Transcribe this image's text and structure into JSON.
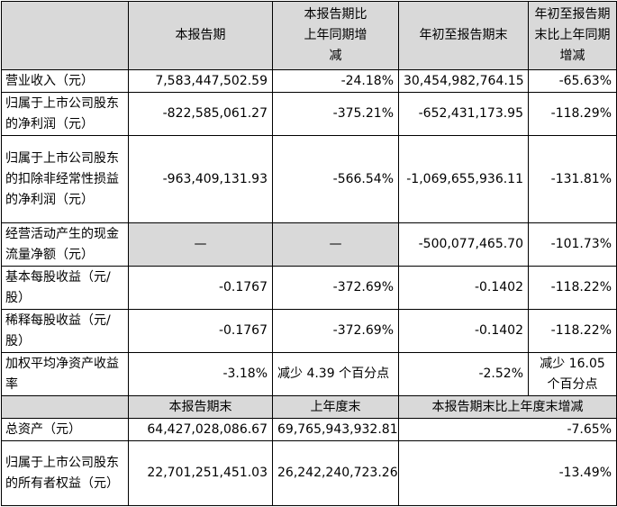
{
  "header": {
    "col1": "本报告期",
    "col2": "本报告期比上年同期增减",
    "col3": "年初至报告期末",
    "col4": "年初至报告期末比上年同期增减"
  },
  "rows": [
    {
      "label": "营业收入（元）",
      "v1": "7,583,447,502.59",
      "v2": "-24.18%",
      "v3": "30,454,982,764.15",
      "v4": "-65.63%"
    },
    {
      "label": "归属于上市公司股东的净利润（元）",
      "v1": "-822,585,061.27",
      "v2": "-375.21%",
      "v3": "-652,431,173.95",
      "v4": "-118.29%"
    },
    {
      "label": "归属于上市公司股东的扣除非经常性损益的净利润（元）",
      "v1": "-963,409,131.93",
      "v2": "-566.54%",
      "v3": "-1,069,655,936.11",
      "v4": "-131.81%"
    },
    {
      "label": "经营活动产生的现金流量净额（元）",
      "v1": "—",
      "v2": "—",
      "v3": "-500,077,465.70",
      "v4": "-101.73%"
    },
    {
      "label": "基本每股收益（元/股）",
      "v1": "-0.1767",
      "v2": "-372.69%",
      "v3": "-0.1402",
      "v4": "-118.22%"
    },
    {
      "label": "稀释每股收益（元/股）",
      "v1": "-0.1767",
      "v2": "-372.69%",
      "v3": "-0.1402",
      "v4": "-118.22%"
    },
    {
      "label": "加权平均净资产收益率",
      "v1": "-3.18%",
      "v2": "减少 4.39 个百分点",
      "v3": "-2.52%",
      "v4": "减少 16.05 个百分点"
    }
  ],
  "header2": {
    "col1": "本报告期末",
    "col2": "上年度末",
    "col3": "本报告期末比上年度末增减"
  },
  "rows2": [
    {
      "label": "总资产（元）",
      "v1": "64,427,028,086.67",
      "v2": "69,765,943,932.81",
      "v3": "-7.65%"
    },
    {
      "label": "归属于上市公司股东的所有者权益（元）",
      "v1": "22,701,251,451.03",
      "v2": "26,242,240,723.26",
      "v3": "-13.49%"
    }
  ],
  "colors": {
    "header_bg": "#d9d9d9",
    "border": "#000000"
  }
}
